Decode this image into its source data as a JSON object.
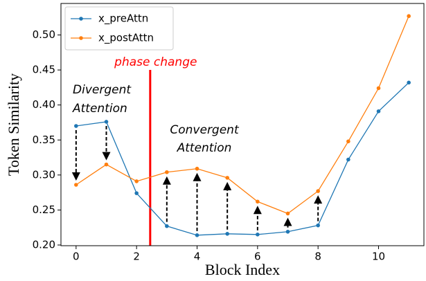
{
  "chart_data": {
    "type": "line",
    "xlabel": "Block Index",
    "ylabel": "Token Similarity",
    "x": [
      0,
      1,
      2,
      3,
      4,
      5,
      6,
      7,
      8,
      9,
      10,
      11
    ],
    "series": [
      {
        "name": "x_preAttn",
        "color": "#1f77b4",
        "values": [
          0.37,
          0.376,
          0.274,
          0.227,
          0.214,
          0.216,
          0.215,
          0.219,
          0.228,
          0.322,
          0.391,
          0.432
        ]
      },
      {
        "name": "x_postAttn",
        "color": "#ff7f0e",
        "values": [
          0.286,
          0.315,
          0.291,
          0.304,
          0.309,
          0.296,
          0.262,
          0.245,
          0.277,
          0.348,
          0.424,
          0.527
        ]
      }
    ],
    "xlim": [
      -0.5,
      11.5
    ],
    "ylim": [
      0.199,
      0.545
    ],
    "xticks": [
      0,
      2,
      4,
      6,
      8,
      10
    ],
    "yticks": [
      {
        "value": 0.2,
        "label": "0.20"
      },
      0.25,
      {
        "value": 0.3,
        "label": "0.30"
      },
      0.35,
      {
        "value": 0.4,
        "label": "0.40"
      },
      0.45,
      {
        "value": 0.5,
        "label": "0.50"
      }
    ],
    "legend": "upper left",
    "phase_change": {
      "label": "phase change",
      "x": 2.45,
      "color": "#ff0000"
    },
    "annotations": [
      "Divergent",
      "Attention",
      "Convergent",
      "Attention"
    ],
    "arrows": [
      0,
      1,
      3,
      4,
      5,
      6,
      7,
      8
    ]
  }
}
